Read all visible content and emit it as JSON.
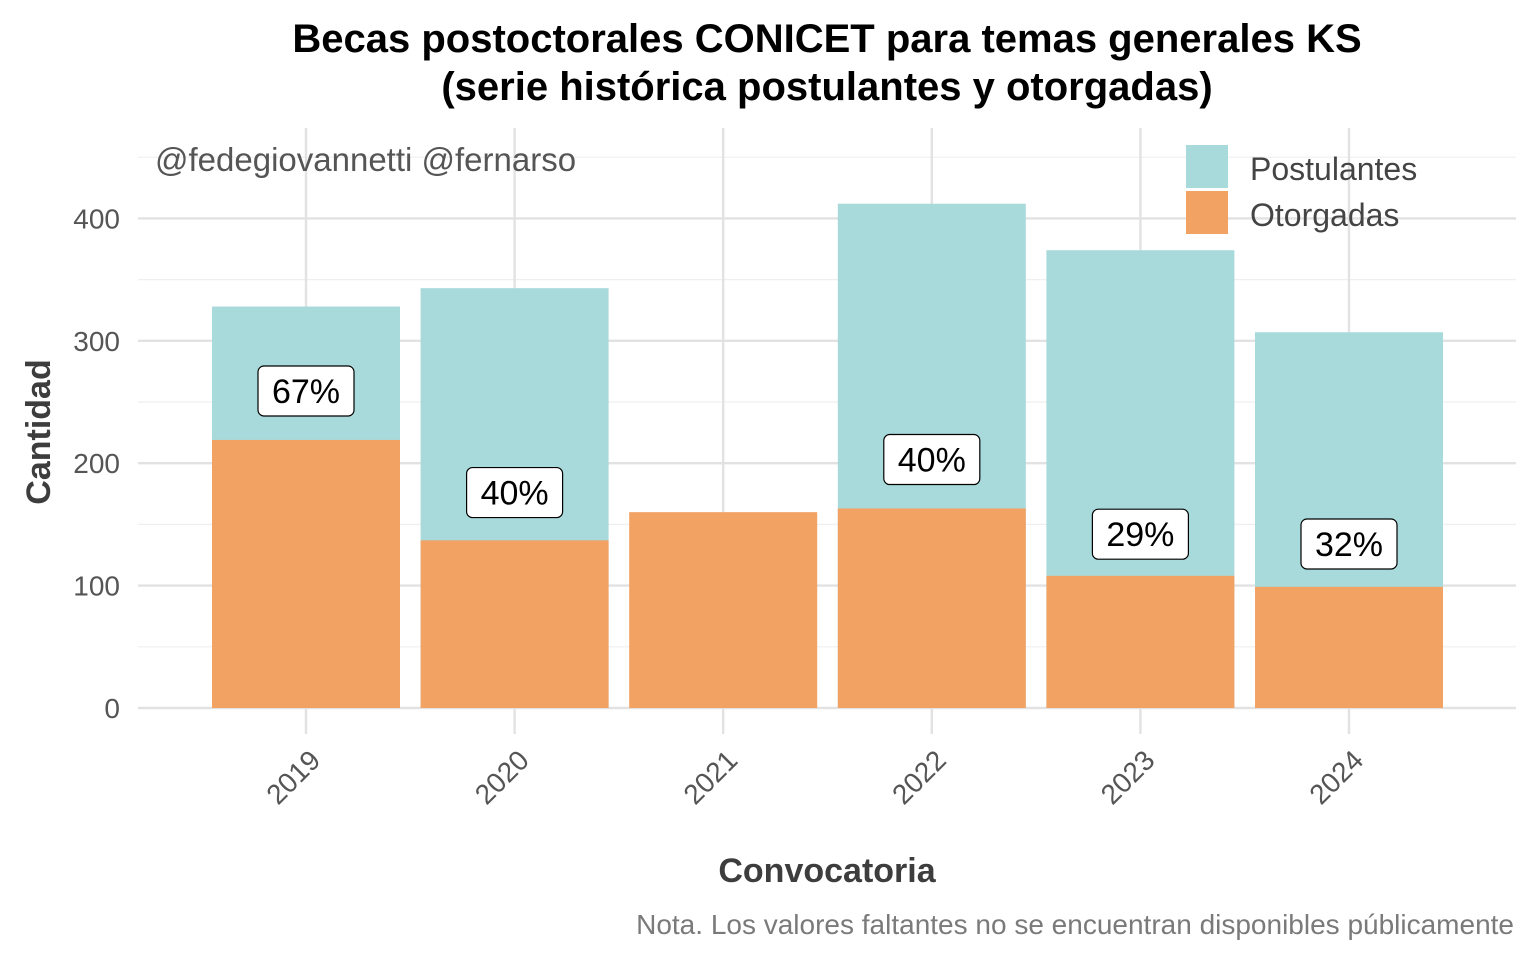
{
  "chart_data": {
    "type": "bar",
    "stacking": "overlay",
    "title": [
      "Becas postoctorales CONICET para temas generales KS",
      "(serie histórica postulantes y otorgadas)"
    ],
    "xlabel": "Convocatoria",
    "ylabel": "Cantidad",
    "credit": "@fedegiovannetti @fernarso",
    "caption": "Nota. Los valores faltantes no se encuentran disponibles públicamente",
    "categories": [
      "2019",
      "2020",
      "2021",
      "2022",
      "2023",
      "2024"
    ],
    "series": [
      {
        "name": "Postulantes",
        "color": "#A8D9DB",
        "values": [
          328,
          343,
          null,
          412,
          374,
          307
        ]
      },
      {
        "name": "Otorgadas",
        "color": "#F2A262",
        "values": [
          219,
          137,
          160,
          163,
          108,
          99
        ]
      }
    ],
    "data_labels": [
      "67%",
      "40%",
      null,
      "40%",
      "29%",
      "32%"
    ],
    "label_positions": [
      259,
      176,
      null,
      203,
      142,
      134
    ],
    "ylim": [
      0,
      460
    ],
    "yticks": [
      0,
      100,
      200,
      300,
      400
    ],
    "grid": true,
    "legend_position": "top-right"
  }
}
